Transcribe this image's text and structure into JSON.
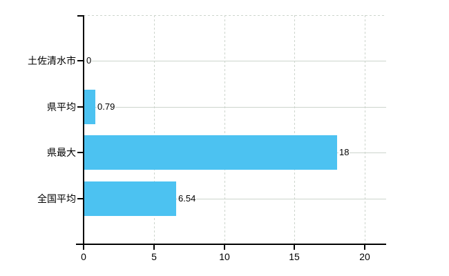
{
  "chart_data": {
    "type": "bar",
    "orientation": "horizontal",
    "title": "",
    "categories": [
      "土佐清水市",
      "県平均",
      "県最大",
      "全国平均"
    ],
    "values": [
      0,
      0.79,
      18,
      6.54
    ],
    "value_labels": [
      "0",
      "0.79",
      "18",
      "6.54"
    ],
    "x_tick_labels": [
      "0",
      "5",
      "10",
      "15",
      "20"
    ],
    "x_tick_values": [
      0,
      5,
      10,
      15,
      20
    ],
    "xlim": [
      0,
      20
    ],
    "grid": "on",
    "legend": "none",
    "bar_color": "#4cc2f1",
    "grid_color": "#ccd4cc",
    "axis_color": "#000000",
    "text_color": "#000000",
    "background_color": "#ffffff"
  }
}
